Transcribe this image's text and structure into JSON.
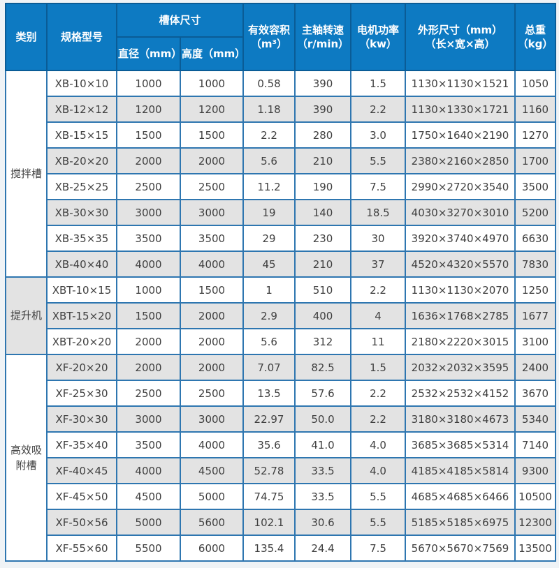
{
  "page": {
    "background_color": "#eff3f6"
  },
  "table": {
    "colors": {
      "header_bg": "#0d7ac2",
      "header_text": "#ffffff",
      "header_border": "#0a5c96",
      "body_border": "#2e76b0",
      "row_bg": "#ffffff",
      "row_alt_bg": "#e3e3e3",
      "body_text": "#3f3f3f"
    },
    "headers": {
      "category": "类别",
      "model": "规格型号",
      "tank_size_group": "槽体尺寸",
      "diameter": "直径（mm）",
      "height": "高度（mm）",
      "volume": "有效容积\n（m³）",
      "speed": "主轴转速\n（r/min）",
      "power": "电机功率\n（kw）",
      "dimensions": "外形尺寸（mm）\n（长×宽×高）",
      "weight": "总重\n（kg）"
    },
    "column_keys": [
      "model",
      "diameter",
      "height",
      "volume",
      "speed",
      "power",
      "dimensions",
      "weight"
    ],
    "groups": [
      {
        "category": "搅拌槽",
        "rows": [
          [
            "XB-10×10",
            "1000",
            "1000",
            "0.58",
            "390",
            "1.5",
            "1130×1130×1521",
            "1050"
          ],
          [
            "XB-12×12",
            "1200",
            "1200",
            "1.18",
            "390",
            "2.2",
            "1130×1330×1721",
            "1160"
          ],
          [
            "XB-15×15",
            "1500",
            "1500",
            "2.2",
            "280",
            "3.0",
            "1750×1640×2190",
            "1270"
          ],
          [
            "XB-20×20",
            "2000",
            "2000",
            "5.6",
            "210",
            "5.5",
            "2380×2160×2850",
            "1700"
          ],
          [
            "XB-25×25",
            "2500",
            "2500",
            "11.2",
            "190",
            "7.5",
            "2990×2720×3540",
            "3500"
          ],
          [
            "XB-30×30",
            "3000",
            "3000",
            "19",
            "140",
            "18.5",
            "4030×3270×3010",
            "5200"
          ],
          [
            "XB-35×35",
            "3500",
            "3500",
            "29",
            "230",
            "30",
            "3920×3740×4970",
            "6630"
          ],
          [
            "XB-40×40",
            "4000",
            "4000",
            "45",
            "210",
            "37",
            "4520×4320×5570",
            "7830"
          ]
        ]
      },
      {
        "category": "提升机",
        "rows": [
          [
            "XBT-10×15",
            "1000",
            "1500",
            "1",
            "510",
            "2.2",
            "1130×1130×2070",
            "1250"
          ],
          [
            "XBT-15×20",
            "1500",
            "2000",
            "2.9",
            "400",
            "4",
            "1636×1768×2785",
            "1677"
          ],
          [
            "XBT-20×20",
            "2000",
            "2000",
            "5.6",
            "312",
            "11",
            "2180×2220×3015",
            "3100"
          ]
        ]
      },
      {
        "category": "高效吸附槽",
        "rows": [
          [
            "XF-20×20",
            "2000",
            "2000",
            "7.07",
            "82.5",
            "1.5",
            "2032×2032×3595",
            "2400"
          ],
          [
            "XF-25×30",
            "2500",
            "2500",
            "13.5",
            "57.6",
            "2.2",
            "2532×2532×4152",
            "3670"
          ],
          [
            "XF-30×30",
            "3000",
            "3000",
            "22.97",
            "50.0",
            "2.2",
            "3180×3180×4673",
            "5340"
          ],
          [
            "XF-35×40",
            "3500",
            "4000",
            "35.6",
            "41.0",
            "4.0",
            "3685×3685×5314",
            "7140"
          ],
          [
            "XF-40×45",
            "4000",
            "4500",
            "52.78",
            "33.5",
            "4.0",
            "4185×4185×5814",
            "9300"
          ],
          [
            "XF-45×50",
            "4500",
            "5000",
            "74.75",
            "33.5",
            "5.5",
            "4685×4685×6466",
            "10500"
          ],
          [
            "XF-50×56",
            "5000",
            "5600",
            "102.1",
            "30.6",
            "5.5",
            "5185×5185×6975",
            "12300"
          ],
          [
            "XF-55×60",
            "5500",
            "6000",
            "135.4",
            "24.4",
            "7.5",
            "5670×5670×7569",
            "13500"
          ]
        ]
      }
    ]
  }
}
